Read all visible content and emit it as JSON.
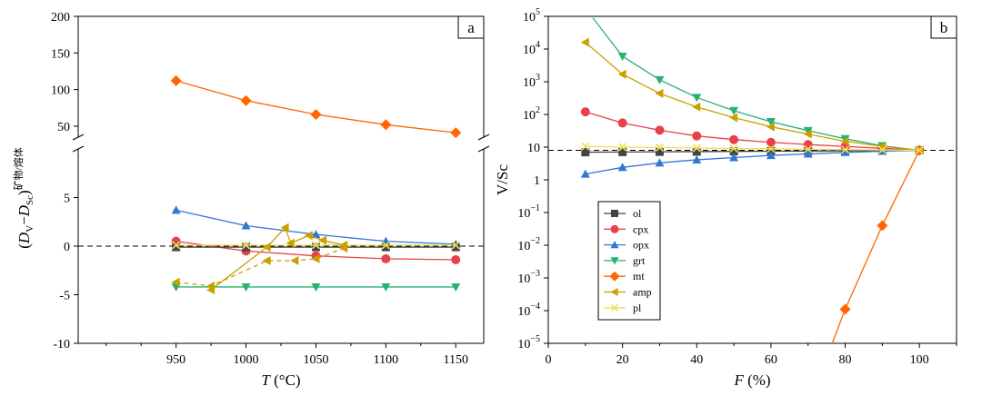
{
  "chart_data": [
    {
      "panel_label": "a",
      "type": "line",
      "xlabel": "T (°C)",
      "xlabel_italic": "T",
      "xlabel_rest": " (°C)",
      "ylabel": "(Dv−DSc)矿物/熔体",
      "ylabel_parts": [
        "(",
        "D",
        "V",
        "−",
        "D",
        "Sc",
        ")",
        "矿物/熔体"
      ],
      "xlim": [
        880,
        1170
      ],
      "ylim_lower": [
        -10,
        10
      ],
      "ylim_upper": [
        35,
        200
      ],
      "axis_break": true,
      "x_ticks": [
        950,
        1000,
        1050,
        1100,
        1150
      ],
      "y_ticks_lower": [
        -10,
        -5,
        0,
        5
      ],
      "y_ticks_upper": [
        50,
        100,
        150,
        200
      ],
      "reference_line": 0,
      "grid": false,
      "series": [
        {
          "color": "#ff6600",
          "marker": "diamond",
          "x": [
            950,
            1000,
            1050,
            1100,
            1150
          ],
          "y": [
            112,
            85,
            66,
            52,
            41
          ]
        },
        {
          "color": "#2f78d6",
          "marker": "triangle-up",
          "x": [
            950,
            1000,
            1050,
            1100,
            1150
          ],
          "y": [
            3.7,
            2.1,
            1.2,
            0.5,
            0.2
          ]
        },
        {
          "color": "#e8414a",
          "marker": "circle",
          "x": [
            950,
            1000,
            1050,
            1100,
            1150
          ],
          "y": [
            0.5,
            -0.5,
            -1.0,
            -1.3,
            -1.4
          ]
        },
        {
          "color": "#2ab072",
          "marker": "triangle-down",
          "x": [
            950,
            1000,
            1050,
            1100,
            1150
          ],
          "y": [
            -4.2,
            -4.2,
            -4.2,
            -4.2,
            -4.2
          ]
        },
        {
          "color": "#444444",
          "marker": "square",
          "x": [
            950,
            1000,
            1050,
            1100,
            1150
          ],
          "y": [
            -0.1,
            -0.1,
            -0.1,
            -0.1,
            -0.1
          ]
        },
        {
          "color": "#f0e05a",
          "marker": "x",
          "x": [
            950,
            1000,
            1050,
            1100,
            1150
          ],
          "y": [
            0.1,
            0.1,
            0.1,
            0.1,
            0.1
          ]
        },
        {
          "color": "#c8a000",
          "marker": "triangle-left",
          "dashed": true,
          "x": [
            950,
            975,
            1015,
            1035,
            1050,
            1070
          ],
          "y": [
            -3.7,
            -4.1,
            -1.5,
            -1.5,
            -1.3,
            -0.2
          ]
        },
        {
          "color": "#c8a000",
          "marker": "triangle-left",
          "x": [
            975,
            1015,
            1028,
            1032,
            1045,
            1055,
            1070
          ],
          "y": [
            -4.5,
            -0.1,
            1.9,
            0.3,
            1.1,
            0.6,
            0.1
          ]
        }
      ]
    },
    {
      "panel_label": "b",
      "type": "line",
      "xlabel": "F (%)",
      "xlabel_italic": "F",
      "xlabel_rest": " (%)",
      "ylabel": "V/Sc",
      "yscale": "log",
      "xlim": [
        0,
        110
      ],
      "ylim": [
        1e-05,
        100000
      ],
      "x_ticks": [
        0,
        20,
        40,
        60,
        80,
        100
      ],
      "y_ticks": [
        {
          "label": "10",
          "exp": "5",
          "value": 100000
        },
        {
          "label": "10",
          "exp": "4",
          "value": 10000
        },
        {
          "label": "10",
          "exp": "3",
          "value": 1000
        },
        {
          "label": "10",
          "exp": "2",
          "value": 100
        },
        {
          "label": "10",
          "exp": "",
          "value": 10
        },
        {
          "label": "1",
          "exp": "",
          "value": 1
        },
        {
          "label": "10",
          "exp": "−1",
          "value": 0.1
        },
        {
          "label": "10",
          "exp": "−2",
          "value": 0.01
        },
        {
          "label": "10",
          "exp": "−3",
          "value": 0.001
        },
        {
          "label": "10",
          "exp": "−4",
          "value": 0.0001
        },
        {
          "label": "10",
          "exp": "−5",
          "value": 1e-05
        }
      ],
      "reference_line": 8,
      "grid": false,
      "legend_position": "lower-left",
      "series": [
        {
          "name": "ol",
          "color": "#444444",
          "marker": "square",
          "x": [
            10,
            20,
            30,
            40,
            50,
            60,
            70,
            80,
            90,
            100
          ],
          "y": [
            7,
            7.1,
            7.2,
            7.3,
            7.4,
            7.5,
            7.6,
            7.7,
            7.9,
            8
          ]
        },
        {
          "name": "cpx",
          "color": "#e8414a",
          "marker": "circle",
          "x": [
            10,
            20,
            30,
            40,
            50,
            60,
            70,
            80,
            90,
            100
          ],
          "y": [
            120,
            55,
            33,
            22,
            17,
            14,
            12,
            10.5,
            9.2,
            8
          ]
        },
        {
          "name": "opx",
          "color": "#2f78d6",
          "marker": "triangle-up",
          "x": [
            10,
            20,
            30,
            40,
            50,
            60,
            70,
            80,
            90,
            100
          ],
          "y": [
            1.5,
            2.4,
            3.3,
            4.1,
            4.8,
            5.6,
            6.2,
            6.9,
            7.5,
            8
          ]
        },
        {
          "name": "grt",
          "color": "#2ab072",
          "marker": "triangle-down",
          "line_start": [
            12,
            90000
          ],
          "x": [
            20,
            30,
            40,
            50,
            60,
            70,
            80,
            90,
            100
          ],
          "y": [
            6000,
            1150,
            330,
            130,
            60,
            32,
            18,
            11,
            8
          ]
        },
        {
          "name": "mt",
          "color": "#ff6600",
          "marker": "diamond",
          "line_start": [
            76.5,
            1e-05
          ],
          "x": [
            80,
            90,
            100
          ],
          "y": [
            0.00011,
            0.04,
            8
          ]
        },
        {
          "name": "amp",
          "color": "#c8a000",
          "marker": "triangle-left",
          "x": [
            10,
            20,
            30,
            40,
            50,
            60,
            70,
            80,
            90,
            100
          ],
          "y": [
            16000,
            1700,
            440,
            170,
            80,
            42,
            25,
            15,
            10.5,
            8
          ]
        },
        {
          "name": "pl",
          "color": "#f0e05a",
          "marker": "x",
          "x": [
            10,
            20,
            30,
            40,
            50,
            60,
            70,
            80,
            90,
            100
          ],
          "y": [
            10.5,
            10,
            9.7,
            9.4,
            9.1,
            8.9,
            8.6,
            8.4,
            8.2,
            8
          ]
        }
      ]
    }
  ]
}
